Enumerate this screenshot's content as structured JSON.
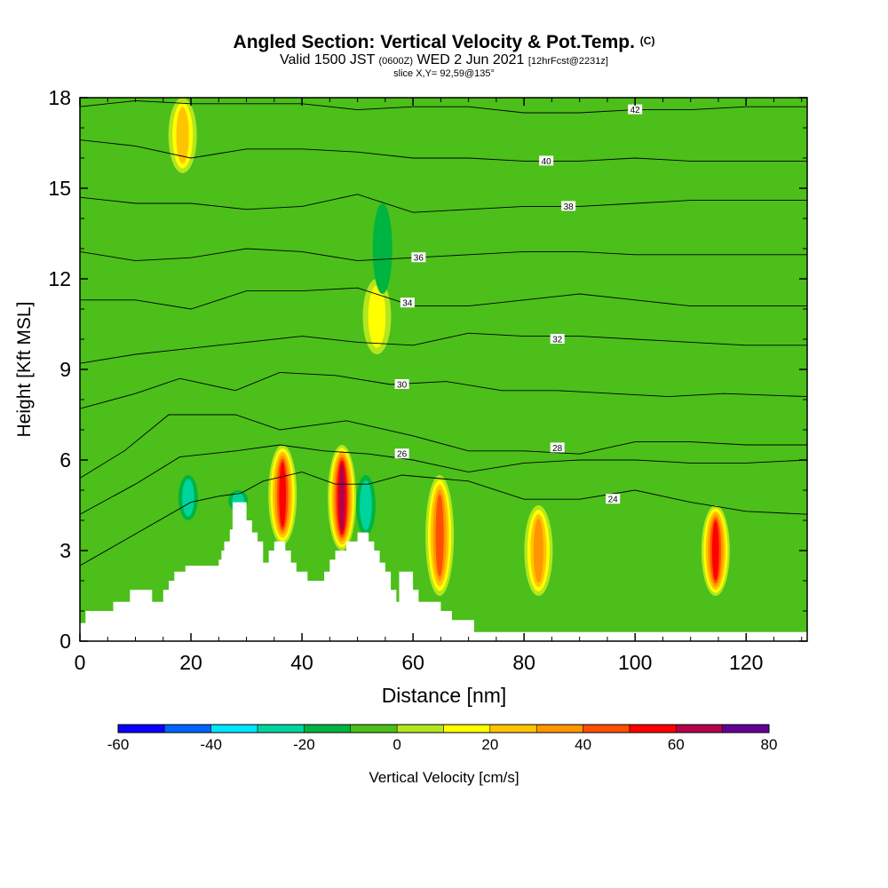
{
  "header": {
    "title": "Angled Section: Vertical Velocity & Pot.Temp.",
    "title_unit": "(C)",
    "valid_prefix": "Valid 1500 JST",
    "valid_z": "(0600Z)",
    "valid_date": "WED 2 Jun 2021",
    "forecast": "[12hrFcst@2231z]",
    "slice": "slice X,Y= 92,59@135°"
  },
  "chart_data": {
    "type": "heatmap",
    "xlabel": "Distance [nm]",
    "ylabel": "Height [Kft MSL]",
    "xlim": [
      0,
      131
    ],
    "ylim": [
      0,
      18
    ],
    "x_ticks": [
      0,
      20,
      40,
      60,
      80,
      100,
      120
    ],
    "y_ticks": [
      0,
      3,
      6,
      9,
      12,
      15,
      18
    ],
    "colorbar": {
      "label": "Vertical Velocity [cm/s]",
      "tick_labels": [
        -60,
        -40,
        -20,
        0,
        20,
        40,
        60,
        80
      ],
      "bins": [
        {
          "from": -60,
          "to": -50,
          "color": "#0a00ff"
        },
        {
          "from": -50,
          "to": -40,
          "color": "#0064ff"
        },
        {
          "from": -40,
          "to": -30,
          "color": "#00e6ff"
        },
        {
          "from": -30,
          "to": -20,
          "color": "#00d49e"
        },
        {
          "from": -20,
          "to": -10,
          "color": "#00b441"
        },
        {
          "from": -10,
          "to": 0,
          "color": "#4cbf1a"
        },
        {
          "from": 0,
          "to": 10,
          "color": "#b4e61e"
        },
        {
          "from": 10,
          "to": 20,
          "color": "#ffff00"
        },
        {
          "from": 20,
          "to": 30,
          "color": "#ffc400"
        },
        {
          "from": 30,
          "to": 40,
          "color": "#ff9600"
        },
        {
          "from": 40,
          "to": 50,
          "color": "#ff5000"
        },
        {
          "from": 50,
          "to": 60,
          "color": "#ff0000"
        },
        {
          "from": 60,
          "to": 70,
          "color": "#b4004b"
        },
        {
          "from": 70,
          "to": 80,
          "color": "#640096"
        }
      ]
    },
    "velocity_features": [
      {
        "x": 36.5,
        "y_bottom": 3.2,
        "y_top": 6.5,
        "peak": 65
      },
      {
        "x": 47.2,
        "y_bottom": 3.0,
        "y_top": 6.5,
        "peak": 78
      },
      {
        "x": 64.8,
        "y_bottom": 1.5,
        "y_top": 5.5,
        "peak": 55
      },
      {
        "x": 82.6,
        "y_bottom": 1.5,
        "y_top": 4.5,
        "peak": 42
      },
      {
        "x": 114.5,
        "y_bottom": 1.5,
        "y_top": 4.5,
        "peak": 60
      },
      {
        "x": 18.5,
        "y_bottom": 15.5,
        "y_top": 18,
        "peak": 35
      },
      {
        "x": 53.5,
        "y_bottom": 9.5,
        "y_top": 12,
        "peak": 25
      },
      {
        "x": 51.5,
        "y_bottom": 3.5,
        "y_top": 5.5,
        "peak": -38
      },
      {
        "x": 54.5,
        "y_bottom": 11.5,
        "y_top": 14.5,
        "peak": -28
      },
      {
        "x": 19.5,
        "y_bottom": 4.0,
        "y_top": 5.5,
        "peak": -32
      },
      {
        "x": 28.5,
        "y_bottom": 4.3,
        "y_top": 5.0,
        "peak": -38
      }
    ],
    "terrain": [
      [
        0,
        0.6
      ],
      [
        1,
        0.6
      ],
      [
        1,
        1.0
      ],
      [
        6,
        1.0
      ],
      [
        6,
        1.3
      ],
      [
        9,
        1.3
      ],
      [
        9,
        1.7
      ],
      [
        13,
        1.7
      ],
      [
        13,
        1.3
      ],
      [
        15,
        1.3
      ],
      [
        15,
        1.7
      ],
      [
        16,
        1.7
      ],
      [
        16,
        2.0
      ],
      [
        17,
        2.0
      ],
      [
        17,
        2.3
      ],
      [
        19,
        2.3
      ],
      [
        19,
        2.5
      ],
      [
        22,
        2.5
      ],
      [
        25,
        2.5
      ],
      [
        25,
        2.7
      ],
      [
        25.5,
        2.7
      ],
      [
        25.5,
        3.0
      ],
      [
        26,
        3.0
      ],
      [
        26,
        3.3
      ],
      [
        27,
        3.3
      ],
      [
        27,
        3.7
      ],
      [
        27.5,
        3.7
      ],
      [
        27.5,
        4.6
      ],
      [
        30,
        4.6
      ],
      [
        30,
        4.0
      ],
      [
        31,
        4.0
      ],
      [
        31,
        3.6
      ],
      [
        32,
        3.6
      ],
      [
        32,
        3.3
      ],
      [
        33,
        3.3
      ],
      [
        33,
        2.6
      ],
      [
        34,
        2.6
      ],
      [
        34,
        3.0
      ],
      [
        35,
        3.0
      ],
      [
        35,
        3.3
      ],
      [
        37,
        3.3
      ],
      [
        37,
        3.0
      ],
      [
        38,
        3.0
      ],
      [
        38,
        2.6
      ],
      [
        39,
        2.6
      ],
      [
        39,
        2.3
      ],
      [
        41,
        2.3
      ],
      [
        41,
        2.0
      ],
      [
        44,
        2.0
      ],
      [
        44,
        2.3
      ],
      [
        45,
        2.3
      ],
      [
        45,
        2.7
      ],
      [
        46,
        2.7
      ],
      [
        46,
        3.0
      ],
      [
        48,
        3.0
      ],
      [
        48,
        3.3
      ],
      [
        50,
        3.3
      ],
      [
        50,
        3.6
      ],
      [
        52,
        3.6
      ],
      [
        52,
        3.3
      ],
      [
        53,
        3.3
      ],
      [
        53,
        3.0
      ],
      [
        54,
        3.0
      ],
      [
        54,
        2.6
      ],
      [
        55,
        2.6
      ],
      [
        55,
        2.3
      ],
      [
        56,
        2.3
      ],
      [
        56,
        1.7
      ],
      [
        57,
        1.7
      ],
      [
        57,
        1.3
      ],
      [
        57.5,
        1.3
      ],
      [
        57.5,
        2.3
      ],
      [
        60,
        2.3
      ],
      [
        60,
        1.7
      ],
      [
        61,
        1.7
      ],
      [
        61,
        1.3
      ],
      [
        65,
        1.3
      ],
      [
        65,
        1.0
      ],
      [
        67,
        1.0
      ],
      [
        67,
        0.7
      ],
      [
        71,
        0.7
      ],
      [
        71,
        0.3
      ],
      [
        131,
        0.3
      ],
      [
        131,
        0
      ]
    ],
    "isentropes": [
      {
        "label": 24,
        "points": [
          [
            0,
            2.5
          ],
          [
            20,
            4.6
          ],
          [
            25,
            4.8
          ],
          [
            29,
            4.9
          ],
          [
            33,
            5.3
          ],
          [
            40,
            5.6
          ],
          [
            46,
            5.2
          ],
          [
            52,
            5.2
          ],
          [
            58,
            5.5
          ],
          [
            70,
            5.3
          ],
          [
            80,
            4.7
          ],
          [
            90,
            4.7
          ],
          [
            100,
            5.0
          ],
          [
            110,
            4.6
          ],
          [
            120,
            4.3
          ],
          [
            131,
            4.2
          ]
        ],
        "label_at": [
          96,
          4.7
        ]
      },
      {
        "label": 26,
        "points": [
          [
            0,
            4.2
          ],
          [
            10,
            5.2
          ],
          [
            18,
            6.1
          ],
          [
            28,
            6.3
          ],
          [
            36,
            6.5
          ],
          [
            44,
            6.3
          ],
          [
            52,
            6.2
          ],
          [
            60,
            6.0
          ],
          [
            70,
            5.6
          ],
          [
            80,
            5.9
          ],
          [
            90,
            6.0
          ],
          [
            100,
            6.0
          ],
          [
            110,
            5.9
          ],
          [
            120,
            5.9
          ],
          [
            131,
            6.0
          ]
        ],
        "label_at": [
          58,
          6.2
        ]
      },
      {
        "label": 28,
        "points": [
          [
            0,
            5.4
          ],
          [
            8,
            6.3
          ],
          [
            16,
            7.5
          ],
          [
            28,
            7.5
          ],
          [
            36,
            7.0
          ],
          [
            48,
            7.3
          ],
          [
            60,
            6.8
          ],
          [
            70,
            6.3
          ],
          [
            80,
            6.3
          ],
          [
            90,
            6.2
          ],
          [
            100,
            6.6
          ],
          [
            110,
            6.6
          ],
          [
            120,
            6.5
          ],
          [
            131,
            6.5
          ]
        ],
        "label_at": [
          86,
          6.4
        ]
      },
      {
        "label": 30,
        "points": [
          [
            0,
            7.7
          ],
          [
            10,
            8.2
          ],
          [
            18,
            8.7
          ],
          [
            28,
            8.3
          ],
          [
            36,
            8.9
          ],
          [
            46,
            8.8
          ],
          [
            56,
            8.5
          ],
          [
            66,
            8.6
          ],
          [
            76,
            8.3
          ],
          [
            86,
            8.3
          ],
          [
            96,
            8.2
          ],
          [
            106,
            8.1
          ],
          [
            116,
            8.2
          ],
          [
            131,
            8.1
          ]
        ],
        "label_at": [
          58,
          8.5
        ]
      },
      {
        "label": 32,
        "points": [
          [
            0,
            9.2
          ],
          [
            10,
            9.5
          ],
          [
            20,
            9.7
          ],
          [
            30,
            9.9
          ],
          [
            40,
            10.1
          ],
          [
            50,
            9.9
          ],
          [
            60,
            9.8
          ],
          [
            70,
            10.2
          ],
          [
            80,
            10.1
          ],
          [
            90,
            10.1
          ],
          [
            100,
            10.0
          ],
          [
            110,
            9.9
          ],
          [
            120,
            9.8
          ],
          [
            131,
            9.8
          ]
        ],
        "label_at": [
          86,
          10.0
        ]
      },
      {
        "label": 34,
        "points": [
          [
            0,
            11.3
          ],
          [
            10,
            11.3
          ],
          [
            20,
            11.0
          ],
          [
            30,
            11.6
          ],
          [
            40,
            11.6
          ],
          [
            50,
            11.7
          ],
          [
            60,
            11.1
          ],
          [
            70,
            11.1
          ],
          [
            80,
            11.3
          ],
          [
            90,
            11.5
          ],
          [
            100,
            11.3
          ],
          [
            110,
            11.1
          ],
          [
            120,
            11.1
          ],
          [
            131,
            11.1
          ]
        ],
        "label_at": [
          59,
          11.2
        ]
      },
      {
        "label": 36,
        "points": [
          [
            0,
            12.9
          ],
          [
            10,
            12.6
          ],
          [
            20,
            12.7
          ],
          [
            30,
            13.0
          ],
          [
            40,
            12.9
          ],
          [
            50,
            12.6
          ],
          [
            60,
            12.7
          ],
          [
            70,
            12.8
          ],
          [
            80,
            12.9
          ],
          [
            90,
            12.9
          ],
          [
            100,
            12.8
          ],
          [
            110,
            12.8
          ],
          [
            120,
            12.8
          ],
          [
            131,
            12.8
          ]
        ],
        "label_at": [
          61,
          12.7
        ]
      },
      {
        "label": 38,
        "points": [
          [
            0,
            14.7
          ],
          [
            10,
            14.5
          ],
          [
            20,
            14.5
          ],
          [
            30,
            14.3
          ],
          [
            40,
            14.4
          ],
          [
            50,
            14.8
          ],
          [
            60,
            14.2
          ],
          [
            70,
            14.3
          ],
          [
            80,
            14.4
          ],
          [
            90,
            14.4
          ],
          [
            100,
            14.5
          ],
          [
            110,
            14.6
          ],
          [
            120,
            14.6
          ],
          [
            131,
            14.6
          ]
        ],
        "label_at": [
          88,
          14.4
        ]
      },
      {
        "label": 40,
        "points": [
          [
            0,
            16.6
          ],
          [
            10,
            16.4
          ],
          [
            20,
            16.0
          ],
          [
            30,
            16.3
          ],
          [
            40,
            16.3
          ],
          [
            50,
            16.2
          ],
          [
            60,
            16.0
          ],
          [
            70,
            16.0
          ],
          [
            80,
            15.9
          ],
          [
            90,
            15.9
          ],
          [
            100,
            16.0
          ],
          [
            110,
            15.9
          ],
          [
            120,
            15.9
          ],
          [
            131,
            15.9
          ]
        ],
        "label_at": [
          84,
          15.9
        ]
      },
      {
        "label": 42,
        "points": [
          [
            0,
            17.7
          ],
          [
            10,
            17.9
          ],
          [
            20,
            17.8
          ],
          [
            30,
            17.8
          ],
          [
            40,
            17.8
          ],
          [
            50,
            17.6
          ],
          [
            60,
            17.7
          ],
          [
            70,
            17.7
          ],
          [
            80,
            17.5
          ],
          [
            90,
            17.5
          ],
          [
            100,
            17.6
          ],
          [
            110,
            17.6
          ],
          [
            120,
            17.7
          ],
          [
            131,
            17.7
          ]
        ],
        "label_at": [
          100,
          17.6
        ]
      }
    ]
  }
}
